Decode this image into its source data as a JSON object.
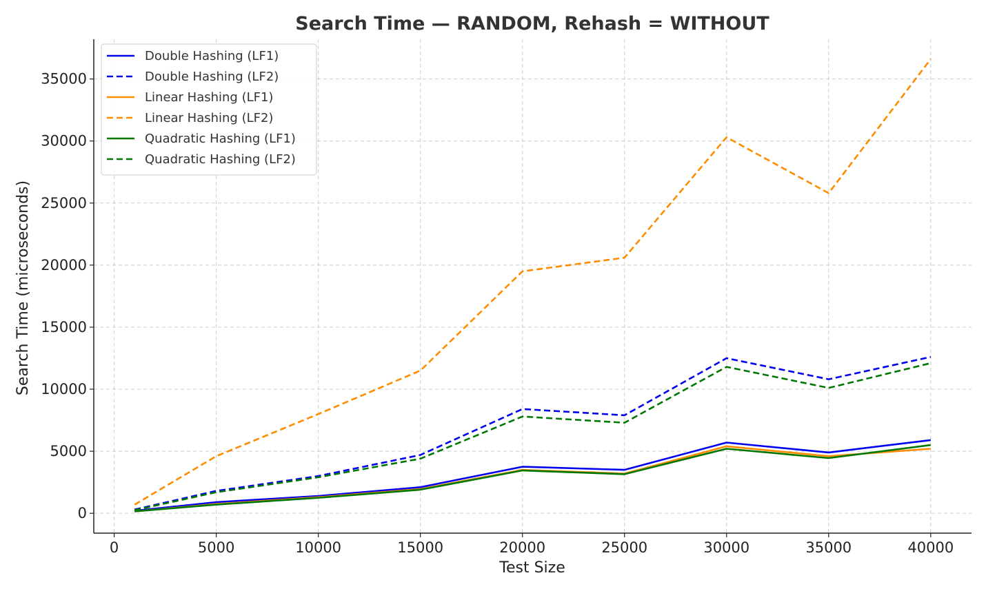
{
  "chart_data": {
    "type": "line",
    "title": "Search Time — RANDOM, Rehash = WITHOUT",
    "xlabel": "Test Size",
    "ylabel": "Search Time (microseconds)",
    "xlim": [
      -1000,
      42000
    ],
    "ylim": [
      -1600,
      38200
    ],
    "xticks": [
      0,
      5000,
      10000,
      15000,
      20000,
      25000,
      30000,
      35000,
      40000
    ],
    "yticks": [
      0,
      5000,
      10000,
      15000,
      20000,
      25000,
      30000,
      35000
    ],
    "grid": true,
    "legend_position": "top-left",
    "x": [
      1000,
      5000,
      10000,
      15000,
      20000,
      25000,
      30000,
      35000,
      40000
    ],
    "series": [
      {
        "name": "Double Hashing (LF1)",
        "color": "#0000ee",
        "dashed": false,
        "values": [
          200,
          900,
          1400,
          2100,
          3750,
          3500,
          5700,
          4900,
          5900
        ]
      },
      {
        "name": "Double Hashing (LF2)",
        "color": "#0000ee",
        "dashed": true,
        "values": [
          300,
          1800,
          3000,
          4700,
          8400,
          7900,
          12500,
          10800,
          12600
        ]
      },
      {
        "name": "Linear Hashing (LF1)",
        "color": "#ff8c00",
        "dashed": false,
        "values": [
          150,
          750,
          1300,
          1950,
          3500,
          3200,
          5400,
          4600,
          5200
        ]
      },
      {
        "name": "Linear Hashing (LF2)",
        "color": "#ff8c00",
        "dashed": true,
        "values": [
          700,
          4600,
          8000,
          11500,
          19500,
          20600,
          30300,
          25800,
          36600
        ]
      },
      {
        "name": "Quadratic Hashing (LF1)",
        "color": "#007700",
        "dashed": false,
        "values": [
          150,
          700,
          1250,
          1900,
          3450,
          3150,
          5200,
          4450,
          5500
        ]
      },
      {
        "name": "Quadratic Hashing (LF2)",
        "color": "#007700",
        "dashed": true,
        "values": [
          250,
          1700,
          2900,
          4400,
          7800,
          7300,
          11800,
          10100,
          12100
        ]
      }
    ]
  }
}
